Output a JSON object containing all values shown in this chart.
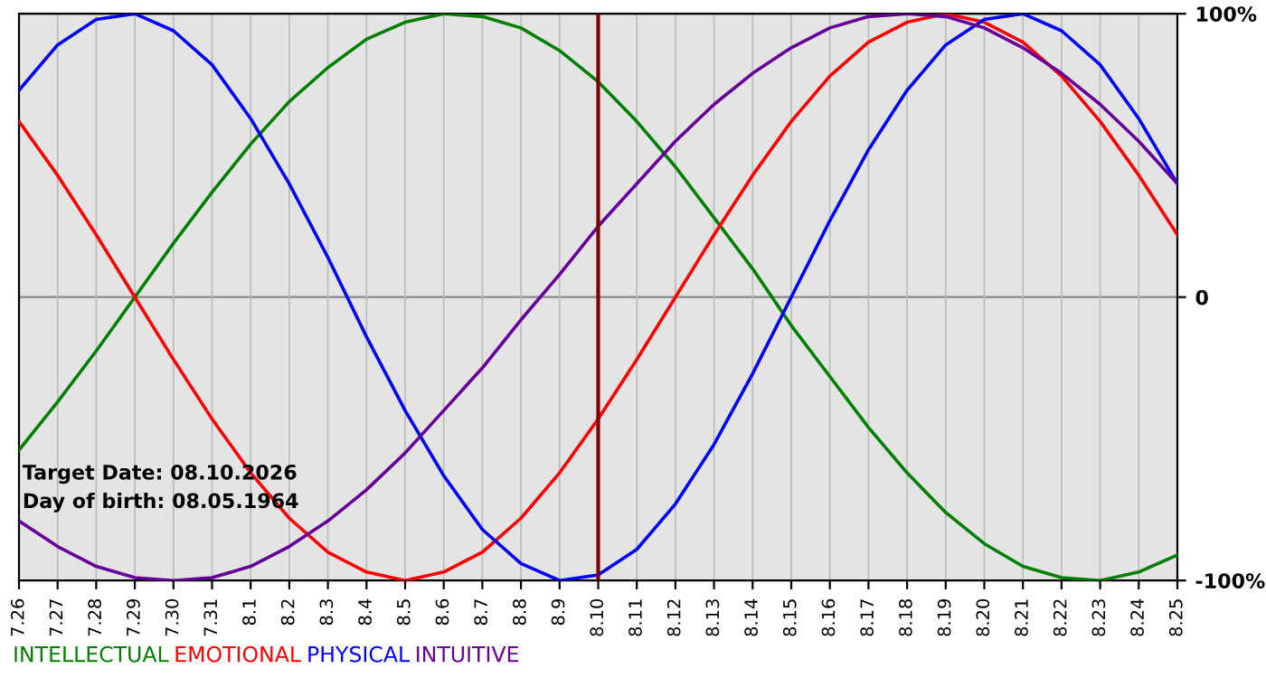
{
  "chart_data": {
    "type": "line",
    "categories": [
      "7.26",
      "7.27",
      "7.28",
      "7.29",
      "7.30",
      "7.31",
      "8.1",
      "8.2",
      "8.3",
      "8.4",
      "8.5",
      "8.6",
      "8.7",
      "8.8",
      "8.9",
      "8.10",
      "8.11",
      "8.12",
      "8.13",
      "8.14",
      "8.15",
      "8.16",
      "8.17",
      "8.18",
      "8.19",
      "8.20",
      "8.21",
      "8.22",
      "8.23",
      "8.24",
      "8.25"
    ],
    "series": [
      {
        "name": "INTELLECTUAL",
        "color": "#008000",
        "values": [
          -54,
          -37,
          -19,
          0,
          19,
          37,
          54,
          69,
          81,
          91,
          97,
          100,
          99,
          95,
          87,
          76,
          62,
          46,
          28,
          10,
          -10,
          -28,
          -46,
          -62,
          -76,
          -87,
          -95,
          -99,
          -100,
          -97,
          -91
        ]
      },
      {
        "name": "EMOTIONAL",
        "color": "#ff0000",
        "values": [
          62,
          43,
          22,
          0,
          -22,
          -43,
          -62,
          -78,
          -90,
          -97,
          -100,
          -97,
          -90,
          -78,
          -62,
          -43,
          -22,
          0,
          22,
          43,
          62,
          78,
          90,
          97,
          100,
          97,
          90,
          78,
          62,
          43,
          22
        ]
      },
      {
        "name": "PHYSICAL",
        "color": "#0000ff",
        "values": [
          73,
          89,
          98,
          100,
          94,
          82,
          63,
          40,
          14,
          -14,
          -40,
          -63,
          -82,
          -94,
          -100,
          -98,
          -89,
          -73,
          -52,
          -27,
          0,
          27,
          52,
          73,
          89,
          98,
          100,
          94,
          82,
          63,
          40
        ]
      },
      {
        "name": "INTUITIVE",
        "color": "#660099",
        "values": [
          -79,
          -88,
          -95,
          -99,
          -100,
          -99,
          -95,
          -88,
          -79,
          -68,
          -55,
          -40,
          -25,
          -8,
          8,
          25,
          40,
          55,
          68,
          79,
          88,
          95,
          99,
          100,
          99,
          95,
          88,
          79,
          68,
          55,
          40
        ]
      }
    ],
    "ylim": [
      -100,
      100
    ],
    "yticks": [
      {
        "value": 100,
        "label": "100%"
      },
      0,
      {
        "value": -100,
        "label": "-100%"
      }
    ],
    "grid": true,
    "legend": "bottom",
    "marker": "none",
    "line_style": "solid",
    "ref_lines": [
      {
        "axis": "x",
        "value": "8.10",
        "color": "#800000"
      }
    ],
    "annotations": [
      "Target Date: 08.10.2026",
      "Day of birth: 08.05.1964"
    ]
  }
}
